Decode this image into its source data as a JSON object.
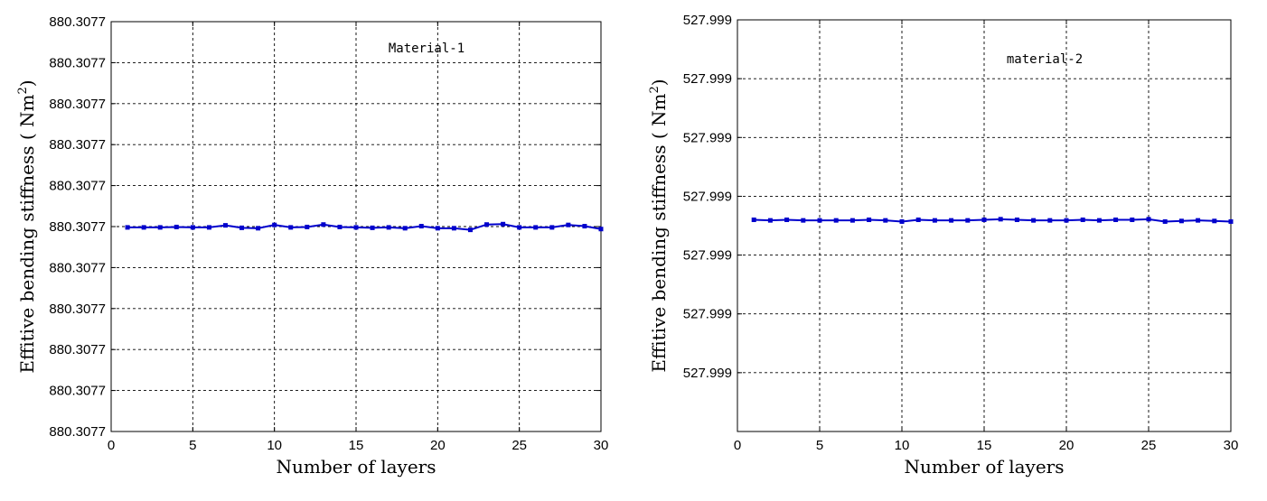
{
  "chart_data": [
    {
      "type": "line",
      "xlabel": "Number of layers",
      "ylabel": "Effitive bending stiffness ( Nm",
      "ylabel_sup": "2",
      "ylabel_end": ")",
      "annotation": "Material-1",
      "xlim": [
        0,
        30
      ],
      "xticks": [
        0,
        5,
        10,
        15,
        20,
        25,
        30
      ],
      "ylim": [
        0,
        10
      ],
      "yticks": [
        0,
        1,
        2,
        3,
        4,
        5,
        6,
        7,
        8,
        9,
        10
      ],
      "ytick_labels": [
        "880.3077",
        "880.3077",
        "880.3077",
        "880.3077",
        "880.3077",
        "880.3077",
        "880.3077",
        "880.3077",
        "880.3077",
        "880.3077",
        "880.3077"
      ],
      "grid": true,
      "color": "#0000cc",
      "series": [
        {
          "x": [
            1,
            2,
            3,
            4,
            5,
            6,
            7,
            8,
            9,
            10,
            11,
            12,
            13,
            14,
            15,
            16,
            17,
            18,
            19,
            20,
            21,
            22,
            23,
            24,
            25,
            26,
            27,
            28,
            29,
            30
          ],
          "values": [
            4.98,
            4.98,
            4.98,
            4.99,
            4.98,
            4.98,
            5.03,
            4.97,
            4.96,
            5.04,
            4.98,
            4.99,
            5.05,
            4.99,
            4.98,
            4.97,
            4.98,
            4.96,
            5.01,
            4.96,
            4.96,
            4.92,
            5.05,
            5.06,
            4.98,
            4.98,
            4.98,
            5.04,
            5.01,
            4.94
          ]
        }
      ]
    },
    {
      "type": "line",
      "xlabel": "Number of layers",
      "ylabel": "Effitive bending stiffness ( Nm",
      "ylabel_sup": "2",
      "ylabel_end": ")",
      "annotation": "material-2",
      "xlim": [
        0,
        30
      ],
      "xticks": [
        0,
        5,
        10,
        15,
        20,
        25,
        30
      ],
      "ylim": [
        0,
        7
      ],
      "yticks": [
        1,
        2,
        3,
        4,
        5,
        6,
        7
      ],
      "ytick_labels": [
        "527.999",
        "527.999",
        "527.999",
        "527.999",
        "527.999",
        "527.999",
        "527.999"
      ],
      "grid": true,
      "color": "#0000cc",
      "series": [
        {
          "x": [
            1,
            2,
            3,
            4,
            5,
            6,
            7,
            8,
            9,
            10,
            11,
            12,
            13,
            14,
            15,
            16,
            17,
            18,
            19,
            20,
            21,
            22,
            23,
            24,
            25,
            26,
            27,
            28,
            29,
            30
          ],
          "values": [
            3.6,
            3.59,
            3.6,
            3.59,
            3.59,
            3.59,
            3.59,
            3.6,
            3.59,
            3.57,
            3.6,
            3.59,
            3.59,
            3.59,
            3.6,
            3.61,
            3.6,
            3.59,
            3.59,
            3.59,
            3.6,
            3.59,
            3.6,
            3.6,
            3.61,
            3.57,
            3.58,
            3.59,
            3.58,
            3.57
          ]
        }
      ]
    }
  ]
}
